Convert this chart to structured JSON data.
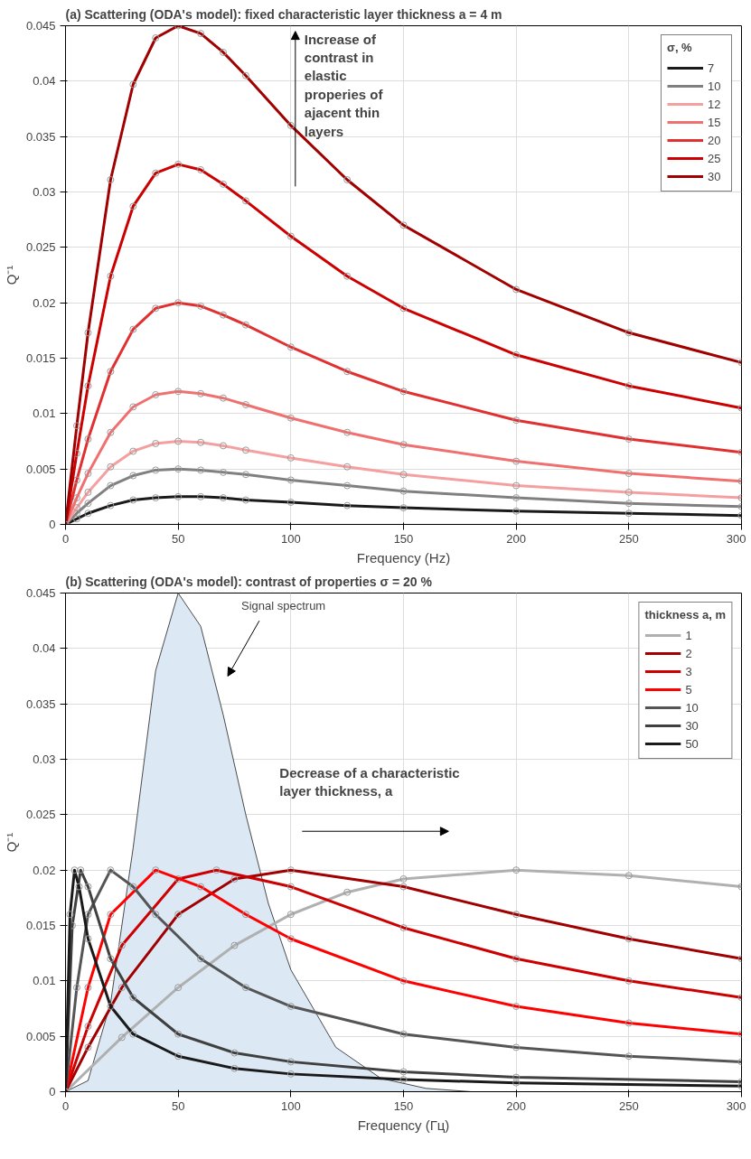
{
  "chart_data": [
    {
      "type": "line",
      "title": "(a) Scattering (ODA's model):  fixed characteristic layer thickness a = 4 m",
      "xlabel": "Frequency (Hz)",
      "ylabel": "Q⁻¹",
      "legend_title": "σ, %",
      "legend": "top right",
      "grid": true,
      "marker": "circle",
      "line_style": "solid",
      "xlim": [
        0,
        300
      ],
      "ylim": [
        0,
        0.045
      ],
      "xticks": [
        0,
        50,
        100,
        150,
        200,
        250,
        300
      ],
      "yticks": [
        0,
        0.005,
        0.01,
        0.015,
        0.02,
        0.025,
        0.03,
        0.035,
        0.04,
        0.045
      ],
      "annotations": [
        "Increase of contrast in elastic properies of ajacent thin layers"
      ],
      "x": [
        0,
        5,
        10,
        20,
        30,
        40,
        50,
        60,
        70,
        80,
        100,
        125,
        150,
        200,
        250,
        300
      ],
      "series": [
        {
          "name": "7",
          "color": "#1a1a1a",
          "values": [
            0,
            0.0005,
            0.001,
            0.0017,
            0.0022,
            0.0024,
            0.0025,
            0.0025,
            0.0024,
            0.0022,
            0.002,
            0.0017,
            0.0015,
            0.0012,
            0.001,
            0.0008
          ]
        },
        {
          "name": "10",
          "color": "#808080",
          "values": [
            0,
            0.001,
            0.0019,
            0.0035,
            0.0044,
            0.0049,
            0.005,
            0.0049,
            0.0047,
            0.0045,
            0.004,
            0.0035,
            0.003,
            0.0024,
            0.0019,
            0.0016
          ]
        },
        {
          "name": "12",
          "color": "#f4a0a0",
          "values": [
            0,
            0.0015,
            0.0029,
            0.0052,
            0.0066,
            0.0073,
            0.0075,
            0.0074,
            0.0071,
            0.0067,
            0.006,
            0.0052,
            0.0045,
            0.0035,
            0.0029,
            0.0024
          ]
        },
        {
          "name": "15",
          "color": "#f07070",
          "values": [
            0,
            0.0024,
            0.0046,
            0.0083,
            0.0106,
            0.0117,
            0.012,
            0.0118,
            0.0114,
            0.0108,
            0.0096,
            0.0083,
            0.0072,
            0.0057,
            0.0046,
            0.0039
          ]
        },
        {
          "name": "20",
          "color": "#e03030",
          "values": [
            0,
            0.004,
            0.0077,
            0.0138,
            0.0176,
            0.0195,
            0.02,
            0.0197,
            0.0189,
            0.018,
            0.016,
            0.0138,
            0.012,
            0.0094,
            0.0077,
            0.0065
          ]
        },
        {
          "name": "25",
          "color": "#cc0000",
          "values": [
            0,
            0.0064,
            0.0125,
            0.0224,
            0.0287,
            0.0317,
            0.0325,
            0.032,
            0.0307,
            0.0292,
            0.026,
            0.0224,
            0.0195,
            0.0153,
            0.0125,
            0.0105
          ]
        },
        {
          "name": "30",
          "color": "#a00000",
          "values": [
            0,
            0.0089,
            0.0173,
            0.0311,
            0.0397,
            0.0439,
            0.045,
            0.0443,
            0.0426,
            0.0405,
            0.036,
            0.0311,
            0.027,
            0.0212,
            0.0173,
            0.0146
          ]
        }
      ]
    },
    {
      "type": "line",
      "title": "(b) Scattering (ODA's model): contrast of properties σ = 20 %",
      "xlabel": "Frequency (Гц)",
      "ylabel": "Q⁻¹",
      "legend_title": "thickness a, m",
      "legend": "top right",
      "grid": true,
      "marker": "circle",
      "line_style": "solid",
      "xlim": [
        0,
        300
      ],
      "ylim": [
        0,
        0.045
      ],
      "xticks": [
        0,
        50,
        100,
        150,
        200,
        250,
        300
      ],
      "yticks": [
        0,
        0.005,
        0.01,
        0.015,
        0.02,
        0.025,
        0.03,
        0.035,
        0.04,
        0.045
      ],
      "annotations": [
        "Signal spectrum",
        "Decrease of a characteristic layer  thickness, a"
      ],
      "series": [
        {
          "type": "area",
          "marker": "none",
          "color": "#dce9f5",
          "x": [
            0,
            10,
            20,
            30,
            40,
            50,
            60,
            70,
            80,
            90,
            100,
            120,
            140,
            160,
            180
          ],
          "values": [
            0,
            0.001,
            0.008,
            0.022,
            0.038,
            0.045,
            0.042,
            0.034,
            0.025,
            0.017,
            0.011,
            0.004,
            0.0012,
            0.0003,
            0
          ]
        },
        {
          "name": "1",
          "color": "#b0b0b0",
          "x": [
            0,
            25,
            50,
            75,
            100,
            125,
            150,
            200,
            250,
            300
          ],
          "values": [
            0,
            0.0049,
            0.0094,
            0.0132,
            0.016,
            0.018,
            0.0192,
            0.02,
            0.0195,
            0.0185
          ]
        },
        {
          "name": "2",
          "color": "#a00000",
          "x": [
            0,
            10,
            25,
            50,
            75,
            100,
            150,
            200,
            250,
            300
          ],
          "values": [
            0,
            0.004,
            0.0094,
            0.016,
            0.0192,
            0.02,
            0.0185,
            0.016,
            0.0138,
            0.012
          ]
        },
        {
          "name": "3",
          "color": "#cc0000",
          "x": [
            0,
            10,
            25,
            50,
            67,
            100,
            150,
            200,
            250,
            300
          ],
          "values": [
            0,
            0.0059,
            0.0132,
            0.0192,
            0.02,
            0.0185,
            0.0148,
            0.012,
            0.01,
            0.0085
          ]
        },
        {
          "name": "5",
          "color": "#ff0000",
          "x": [
            0,
            10,
            20,
            40,
            60,
            80,
            100,
            150,
            200,
            250,
            300
          ],
          "values": [
            0,
            0.0094,
            0.016,
            0.02,
            0.0185,
            0.016,
            0.0138,
            0.01,
            0.0077,
            0.0062,
            0.0052
          ]
        },
        {
          "name": "10",
          "color": "#555555",
          "x": [
            0,
            5,
            10,
            20,
            30,
            40,
            60,
            80,
            100,
            150,
            200,
            250,
            300
          ],
          "values": [
            0,
            0.0094,
            0.016,
            0.02,
            0.0185,
            0.016,
            0.012,
            0.0094,
            0.0077,
            0.0052,
            0.004,
            0.0032,
            0.0027
          ]
        },
        {
          "name": "30",
          "color": "#404040",
          "x": [
            0,
            3,
            6.7,
            10,
            20,
            30,
            50,
            75,
            100,
            150,
            200,
            300
          ],
          "values": [
            0,
            0.015,
            0.02,
            0.0185,
            0.012,
            0.0085,
            0.0052,
            0.0035,
            0.0027,
            0.0018,
            0.0013,
            0.0009
          ]
        },
        {
          "name": "50",
          "color": "#1a1a1a",
          "x": [
            0,
            2,
            4,
            6,
            10,
            20,
            30,
            50,
            75,
            100,
            150,
            200,
            300
          ],
          "values": [
            0,
            0.016,
            0.02,
            0.0185,
            0.0138,
            0.0077,
            0.0052,
            0.0032,
            0.0021,
            0.0016,
            0.0011,
            0.0008,
            0.0005
          ]
        }
      ]
    }
  ]
}
